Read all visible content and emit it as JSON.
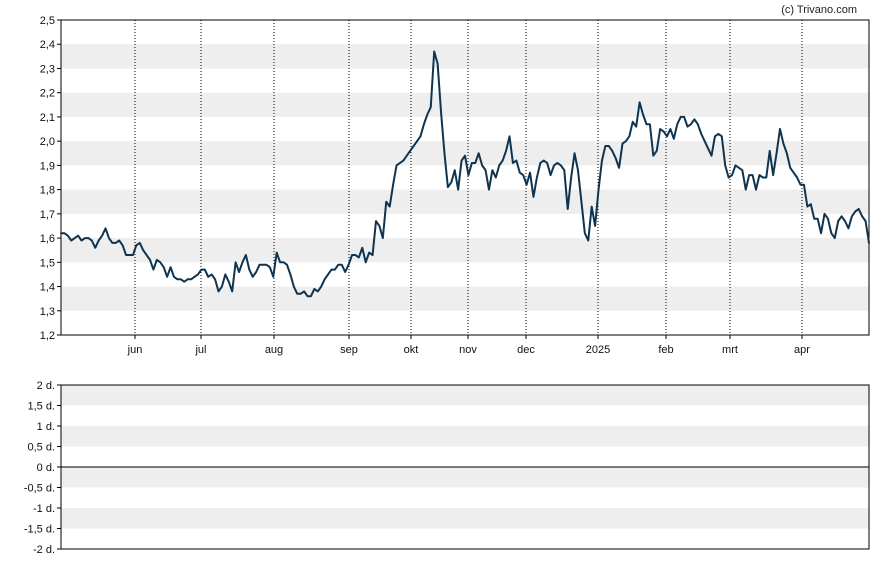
{
  "credit": "(c) Trivano.com",
  "colors": {
    "line": "#0f3450",
    "band": "#eeeeee",
    "frame": "#000000",
    "grid": "#000000"
  },
  "chart_data": [
    {
      "type": "line",
      "x_tick_labels": [
        "jun",
        "jul",
        "aug",
        "sep",
        "okt",
        "nov",
        "dec",
        "2025",
        "feb",
        "mrt",
        "apr"
      ],
      "y_tick_labels": [
        "1,2",
        "1,3",
        "1,4",
        "1,5",
        "1,6",
        "1,7",
        "1,8",
        "1,9",
        "2,0",
        "2,1",
        "2,2",
        "2,3",
        "2,4",
        "2,5"
      ],
      "ylim": [
        1.2,
        2.5
      ],
      "grid": "alternating horizontal bands, dotted vertical lines at month ticks",
      "series": [
        {
          "values": [
            1.62,
            1.62,
            1.61,
            1.59,
            1.6,
            1.61,
            1.59,
            1.6,
            1.6,
            1.59,
            1.56,
            1.59,
            1.61,
            1.64,
            1.6,
            1.58,
            1.58,
            1.59,
            1.57,
            1.53,
            1.53,
            1.53,
            1.57,
            1.58,
            1.55,
            1.53,
            1.51,
            1.47,
            1.51,
            1.5,
            1.48,
            1.44,
            1.48,
            1.44,
            1.43,
            1.43,
            1.42,
            1.43,
            1.43,
            1.44,
            1.45,
            1.47,
            1.47,
            1.44,
            1.45,
            1.43,
            1.38,
            1.4,
            1.45,
            1.42,
            1.38,
            1.5,
            1.46,
            1.5,
            1.53,
            1.47,
            1.44,
            1.46,
            1.49,
            1.49,
            1.49,
            1.48,
            1.44,
            1.54,
            1.5,
            1.5,
            1.49,
            1.45,
            1.4,
            1.37,
            1.37,
            1.38,
            1.36,
            1.36,
            1.39,
            1.38,
            1.4,
            1.43,
            1.45,
            1.47,
            1.47,
            1.49,
            1.49,
            1.46,
            1.49,
            1.53,
            1.53,
            1.52,
            1.56,
            1.5,
            1.54,
            1.53,
            1.67,
            1.65,
            1.6,
            1.75,
            1.73,
            1.82,
            1.9,
            1.91,
            1.92,
            1.94,
            1.96,
            1.98,
            2.0,
            2.02,
            2.07,
            2.11,
            2.14,
            2.37,
            2.32,
            2.12,
            1.95,
            1.81,
            1.83,
            1.88,
            1.8,
            1.92,
            1.94,
            1.86,
            1.91,
            1.91,
            1.95,
            1.9,
            1.88,
            1.8,
            1.88,
            1.85,
            1.9,
            1.92,
            1.96,
            2.02,
            1.91,
            1.92,
            1.87,
            1.86,
            1.82,
            1.87,
            1.77,
            1.85,
            1.91,
            1.92,
            1.91,
            1.86,
            1.9,
            1.91,
            1.9,
            1.88,
            1.72,
            1.85,
            1.95,
            1.88,
            1.75,
            1.62,
            1.59,
            1.73,
            1.65,
            1.8,
            1.92,
            1.98,
            1.98,
            1.96,
            1.93,
            1.89,
            1.99,
            2.0,
            2.02,
            2.08,
            2.06,
            2.16,
            2.11,
            2.07,
            2.07,
            1.94,
            1.96,
            2.05,
            2.04,
            2.02,
            2.05,
            2.01,
            2.07,
            2.1,
            2.1,
            2.06,
            2.07,
            2.09,
            2.07,
            2.03,
            2.0,
            1.97,
            1.94,
            2.02,
            2.03,
            2.02,
            1.9,
            1.85,
            1.86,
            1.9,
            1.89,
            1.88,
            1.8,
            1.86,
            1.86,
            1.8,
            1.86,
            1.85,
            1.85,
            1.96,
            1.86,
            1.95,
            2.05,
            1.99,
            1.95,
            1.89,
            1.87,
            1.85,
            1.82,
            1.82,
            1.73,
            1.74,
            1.68,
            1.68,
            1.62,
            1.7,
            1.68,
            1.62,
            1.6,
            1.67,
            1.69,
            1.67,
            1.64,
            1.69,
            1.71,
            1.72,
            1.69,
            1.67,
            1.58
          ]
        }
      ]
    },
    {
      "type": "line",
      "y_tick_labels": [
        "2 d.",
        "1,5 d.",
        "1 d.",
        "0,5 d.",
        "0 d.",
        "-0,5 d.",
        "-1 d.",
        "-1,5 d.",
        "-2 d."
      ],
      "ylim": [
        -2,
        2
      ],
      "grid": "alternating horizontal bands, solid line at zero"
    }
  ]
}
